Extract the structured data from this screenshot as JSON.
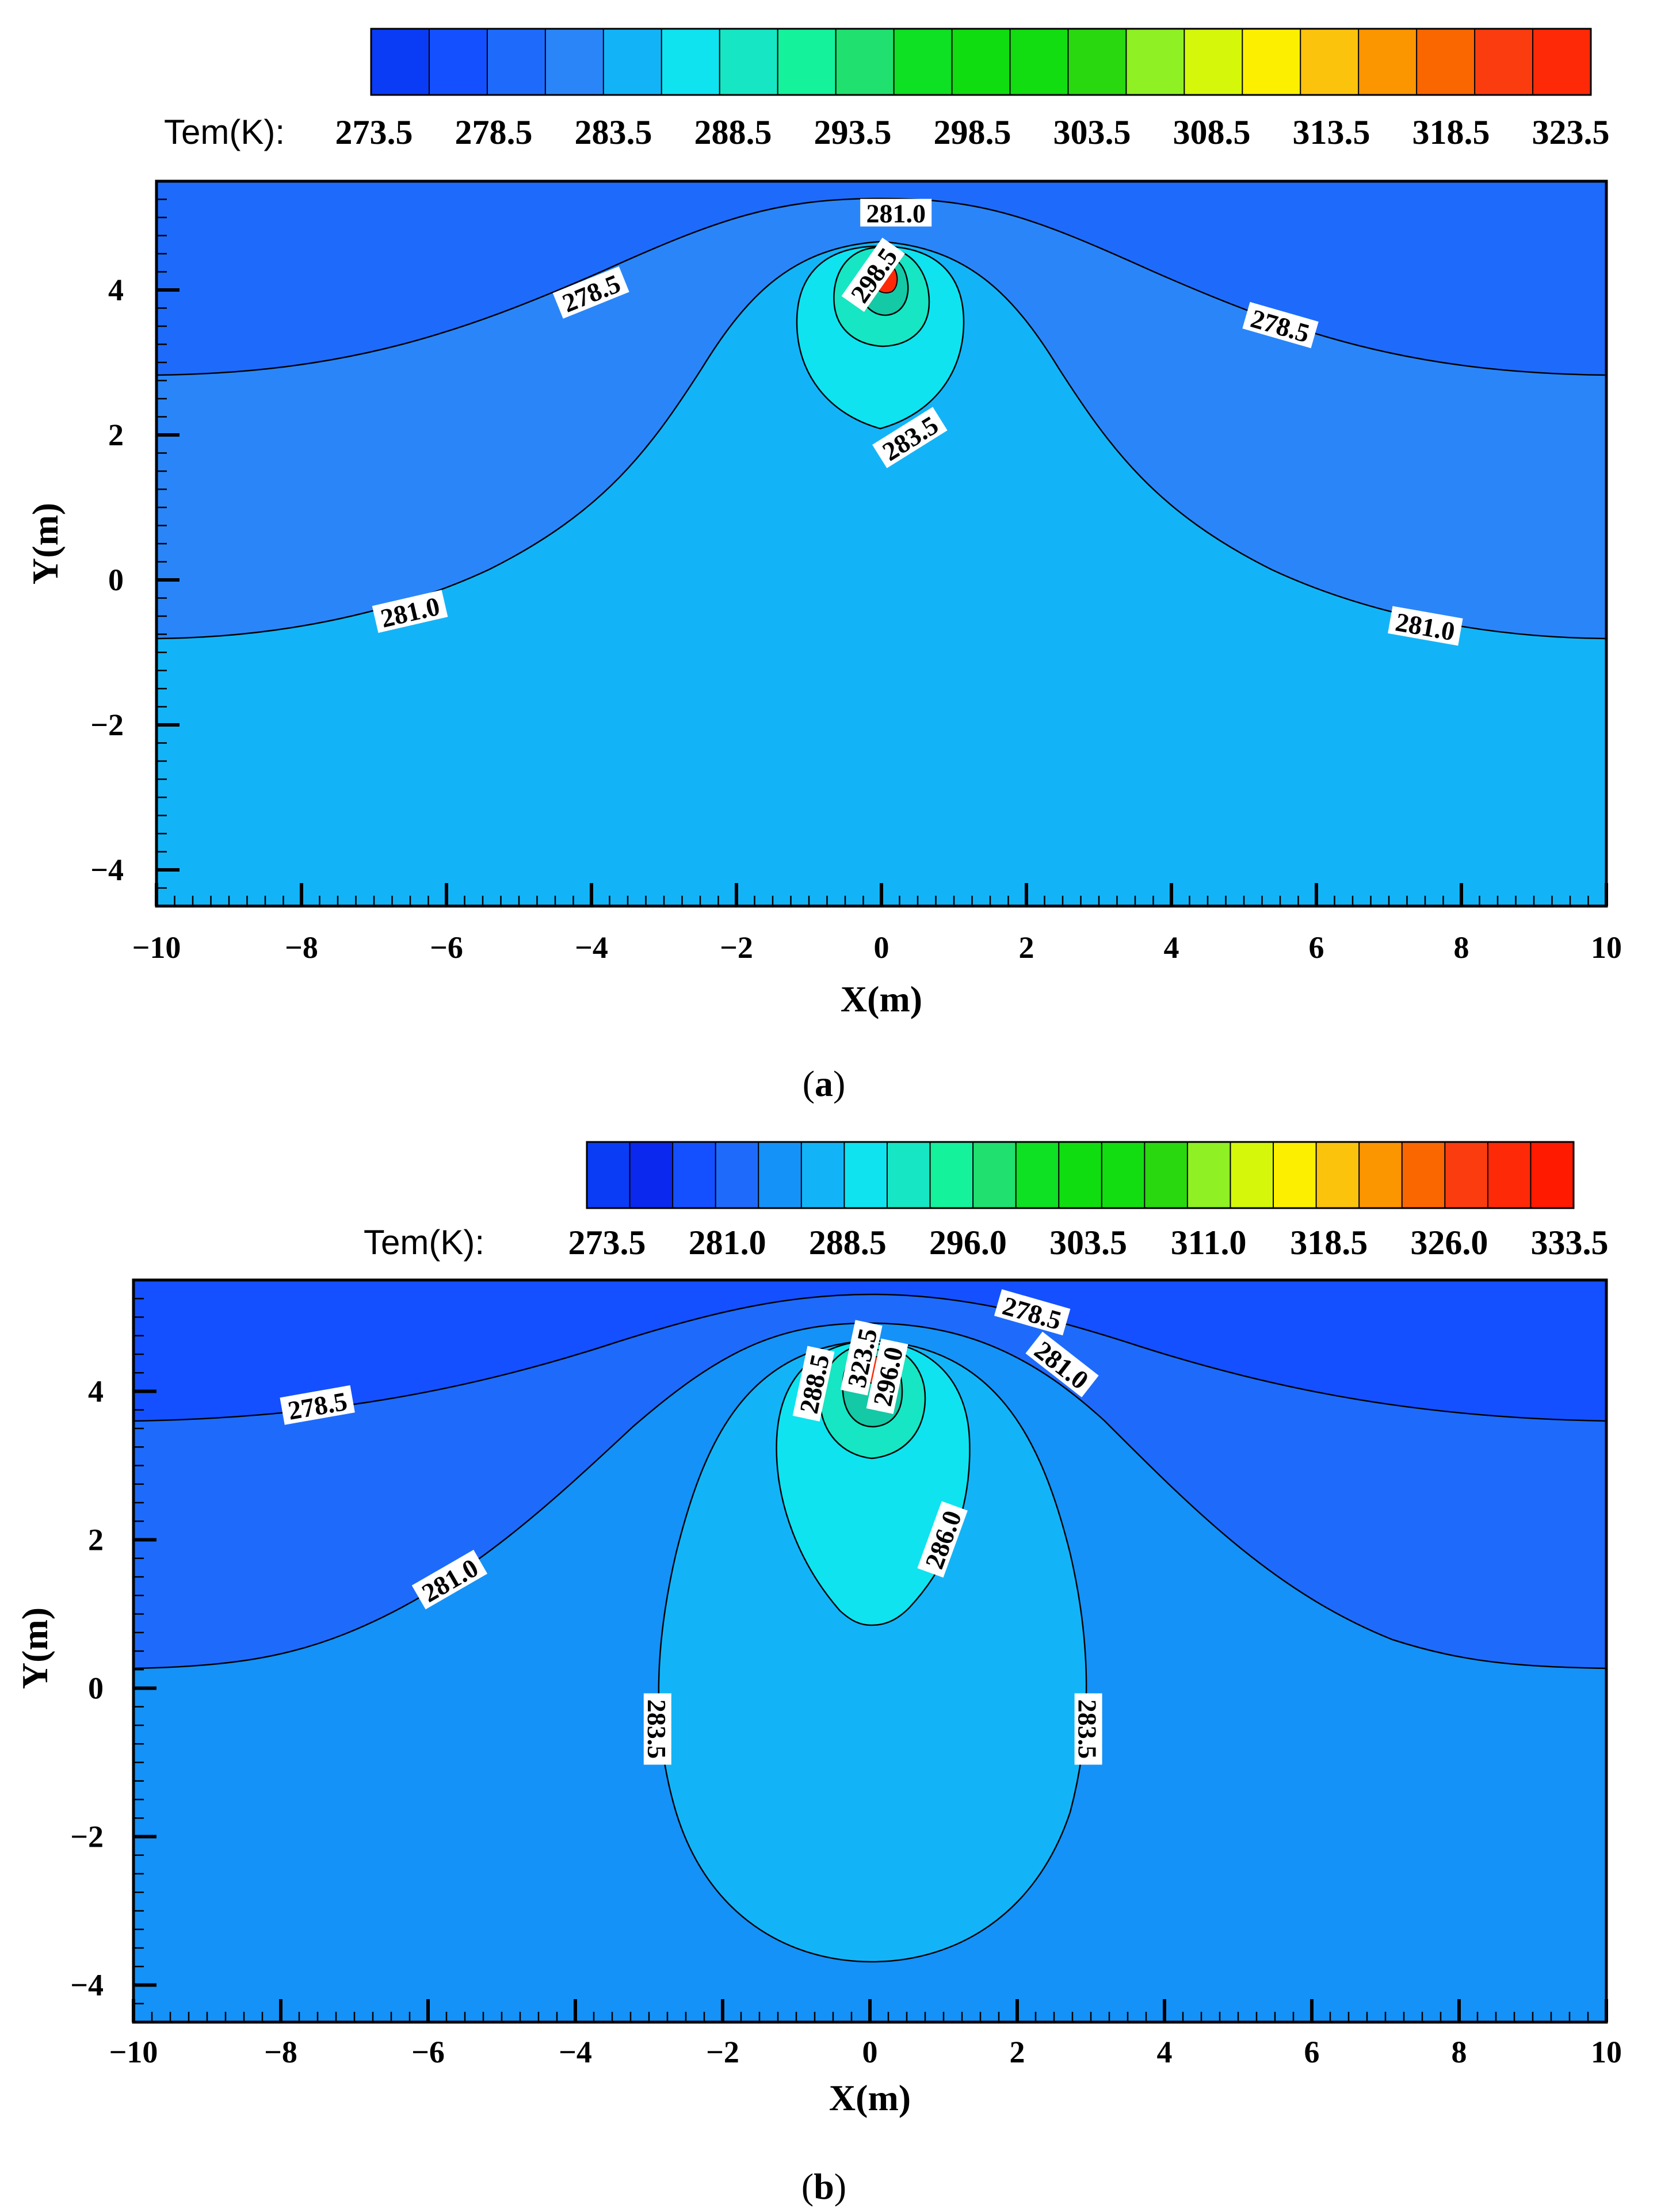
{
  "chart_data": [
    {
      "type": "contour",
      "caption": "(a)",
      "caption_letter": "a",
      "xlabel": "X(m)",
      "ylabel": "Y(m)",
      "xlim": [
        -10,
        10
      ],
      "ylim": [
        -4.5,
        5.5
      ],
      "xticks": [
        "−10",
        "−8",
        "−6",
        "−4",
        "−2",
        "0",
        "2",
        "4",
        "6",
        "8",
        "10"
      ],
      "yticks": [
        "−4",
        "−2",
        "0",
        "2",
        "4"
      ],
      "ytick_values": [
        -4,
        -2,
        0,
        2,
        4
      ],
      "legend": {
        "title": "Tem(K):",
        "labels": [
          "273.5",
          "278.5",
          "283.5",
          "288.5",
          "293.5",
          "298.5",
          "303.5",
          "308.5",
          "313.5",
          "318.5",
          "323.5"
        ],
        "colors": [
          "#0a3cf5",
          "#1450ff",
          "#1e6bfb",
          "#2a86f8",
          "#13b4f7",
          "#0fe3f0",
          "#16e6c3",
          "#14f29c",
          "#20e070",
          "#0ee023",
          "#10dd10",
          "#12dd10",
          "#29d80f",
          "#8ff023",
          "#d5f70a",
          "#fcf000",
          "#fcc30d",
          "#fb9500",
          "#fa6600",
          "#fb3c0f",
          "#fe2906"
        ]
      },
      "contour_labels": [
        {
          "text": "281.0",
          "x": 0.2,
          "y": 5.05,
          "angle": 0
        },
        {
          "text": "298.5",
          "x": -0.1,
          "y": 4.2,
          "angle": -55
        },
        {
          "text": "278.5",
          "x": -4.0,
          "y": 3.95,
          "angle": -22
        },
        {
          "text": "278.5",
          "x": 5.5,
          "y": 3.5,
          "angle": 16
        },
        {
          "text": "283.5",
          "x": 0.4,
          "y": 1.95,
          "angle": -32
        },
        {
          "text": "281.0",
          "x": -6.5,
          "y": -0.45,
          "angle": -13
        },
        {
          "text": "281.0",
          "x": 7.5,
          "y": -0.65,
          "angle": 10
        }
      ],
      "regions": [
        {
          "level": "above 281.0",
          "color": "#1e6bfb"
        },
        {
          "level": "281.0 to 283.5",
          "color": "#2a86f8"
        },
        {
          "level": "283.5 to 288.5",
          "color": "#13b4f7"
        },
        {
          "level": "288.5 to 293.5",
          "color": "#16e6c3"
        },
        {
          "level": "293.5 to 298.5",
          "color": "#14c9a6"
        },
        {
          "level": "above 298.5",
          "color": "#fe2906"
        }
      ]
    },
    {
      "type": "contour",
      "caption": "(b)",
      "caption_letter": "b",
      "xlabel": "X(m)",
      "ylabel": "Y(m)",
      "xlim": [
        -10,
        10
      ],
      "ylim": [
        -4.5,
        5.5
      ],
      "xticks": [
        "−10",
        "−8",
        "−6",
        "−4",
        "−2",
        "0",
        "2",
        "4",
        "6",
        "8",
        "10"
      ],
      "yticks": [
        "−4",
        "−2",
        "0",
        "2",
        "4"
      ],
      "ytick_values": [
        -4,
        -2,
        0,
        2,
        4
      ],
      "legend": {
        "title": "Tem(K):",
        "labels": [
          "273.5",
          "281.0",
          "288.5",
          "296.0",
          "303.5",
          "311.0",
          "318.5",
          "326.0",
          "333.5"
        ],
        "colors": [
          "#0a3cf5",
          "#0a28ee",
          "#1450ff",
          "#1e6bfb",
          "#1492f7",
          "#13b4f7",
          "#0fe3f0",
          "#16e6c3",
          "#14f29c",
          "#20e070",
          "#0ee023",
          "#10dd10",
          "#12dd10",
          "#29d80f",
          "#8ff023",
          "#d5f70a",
          "#fcf000",
          "#fcc30d",
          "#fb9500",
          "#fa6600",
          "#fb3c0f",
          "#fe2906",
          "#ff1a00"
        ]
      },
      "contour_labels": [
        {
          "text": "278.5",
          "x": 2.2,
          "y": 5.05,
          "angle": 16
        },
        {
          "text": "281.0",
          "x": 2.6,
          "y": 4.35,
          "angle": 38
        },
        {
          "text": "278.5",
          "x": -7.5,
          "y": 3.8,
          "angle": -10
        },
        {
          "text": "288.5",
          "x": -0.75,
          "y": 4.1,
          "angle": -78
        },
        {
          "text": "323.5",
          "x": -0.1,
          "y": 4.45,
          "angle": -78
        },
        {
          "text": "296.0",
          "x": 0.25,
          "y": 4.2,
          "angle": -78
        },
        {
          "text": "286.0",
          "x": 1.0,
          "y": 2.0,
          "angle": -70
        },
        {
          "text": "281.0",
          "x": -5.7,
          "y": 1.45,
          "angle": -30
        },
        {
          "text": "283.5",
          "x": -2.9,
          "y": -0.55,
          "angle": 90
        },
        {
          "text": "283.5",
          "x": 2.95,
          "y": -0.55,
          "angle": 90
        }
      ],
      "regions": [
        {
          "level": "above 278.5",
          "color": "#1450ff"
        },
        {
          "level": "278.5 to 281.0",
          "color": "#1e6bfb"
        },
        {
          "level": "281.0 to 283.5",
          "color": "#1492f7"
        },
        {
          "level": "283.5 to 286.0",
          "color": "#13b4f7"
        },
        {
          "level": "286.0 to 288.5",
          "color": "#0fe3f0"
        },
        {
          "level": "288.5 to 296.0",
          "color": "#16e6c3"
        },
        {
          "level": "296.0 to 323.5",
          "color": "#14c9a6"
        },
        {
          "level": "above 323.5",
          "color": "#fe2906"
        }
      ]
    }
  ]
}
